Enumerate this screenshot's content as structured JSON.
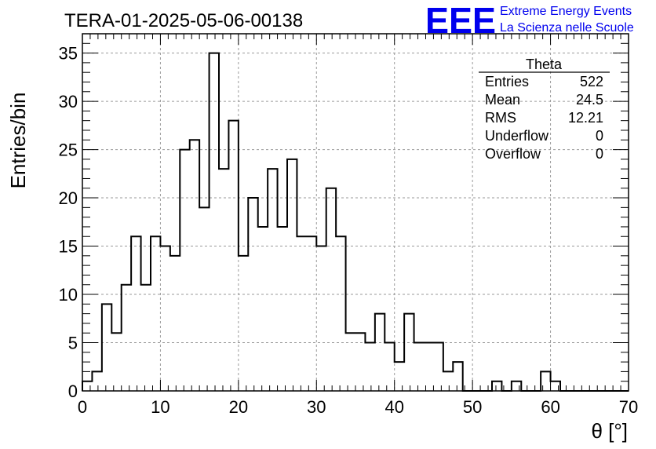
{
  "title": "TERA-01-2025-05-06-00138",
  "logo": {
    "mark": "EEE",
    "line1": "Extreme Energy Events",
    "line2": "La Scienza nelle Scuole",
    "color": "#0000ee"
  },
  "stats": {
    "name": "Theta",
    "rows": [
      {
        "label": "Entries",
        "value": "522"
      },
      {
        "label": "Mean",
        "value": "24.5"
      },
      {
        "label": "RMS",
        "value": "12.21"
      },
      {
        "label": "Underflow",
        "value": "0"
      },
      {
        "label": "Overflow",
        "value": "0"
      }
    ]
  },
  "chart_data": {
    "type": "bar",
    "style": "step-histogram",
    "xlabel": "θ [°]",
    "ylabel": "Entries/bin",
    "xlim": [
      0,
      70
    ],
    "ylim": [
      0,
      37
    ],
    "xticks": [
      0,
      10,
      20,
      30,
      40,
      50,
      60,
      70
    ],
    "yticks": [
      0,
      5,
      10,
      15,
      20,
      25,
      30,
      35
    ],
    "grid": true,
    "legend": "top-right",
    "bin_width": 1.25,
    "x_start": 0,
    "values": [
      1,
      2,
      9,
      6,
      11,
      16,
      11,
      16,
      15,
      14,
      25,
      26,
      19,
      35,
      23,
      28,
      14,
      20,
      17,
      23,
      17,
      24,
      16,
      16,
      15,
      21,
      16,
      6,
      6,
      5,
      8,
      5,
      3,
      8,
      5,
      5,
      5,
      2,
      3,
      0,
      0,
      0,
      1,
      0,
      1,
      0,
      0,
      2,
      1,
      0,
      0,
      0,
      0,
      0,
      0,
      0
    ]
  }
}
